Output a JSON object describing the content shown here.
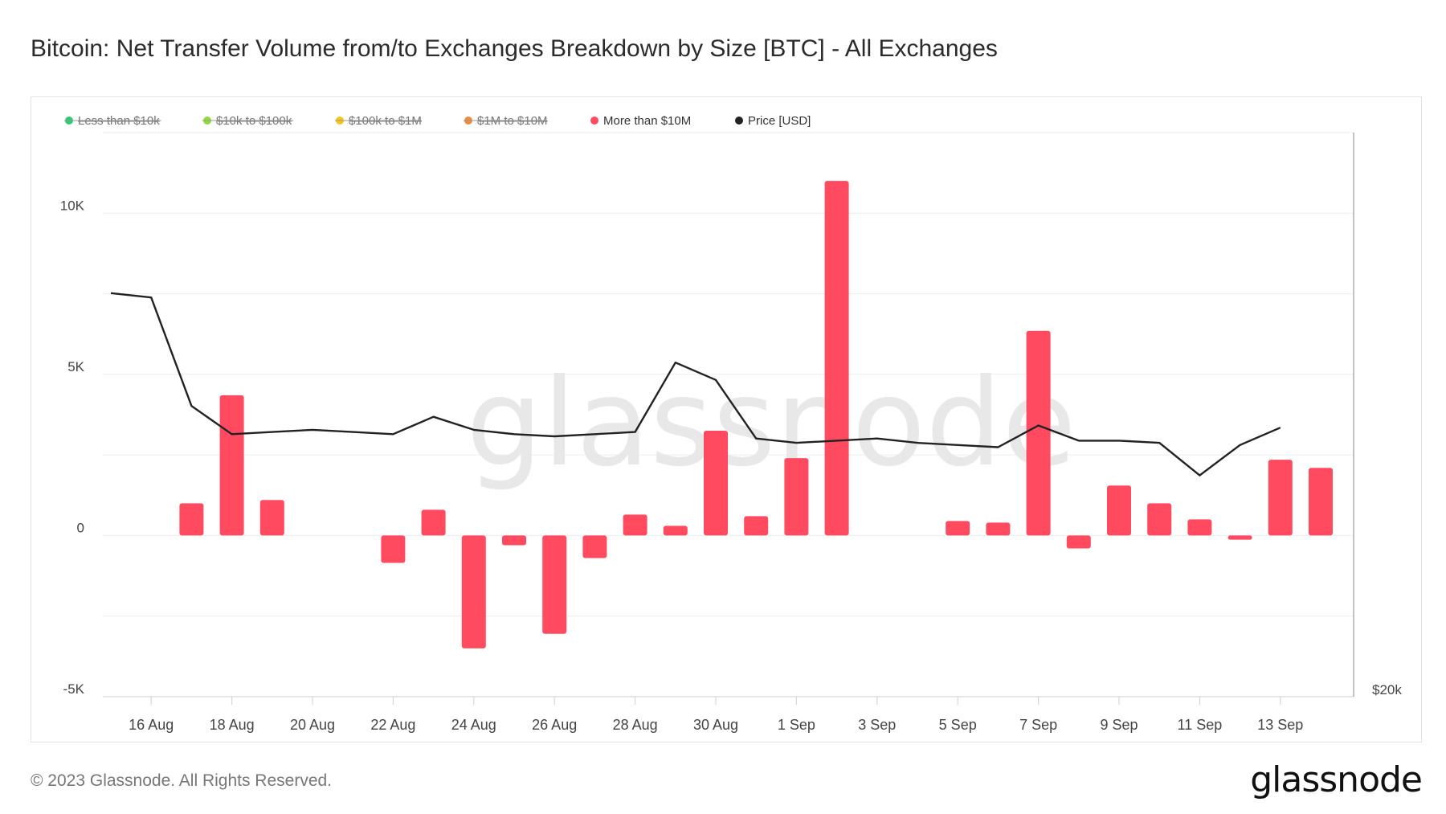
{
  "title": "Bitcoin: Net Transfer Volume from/to Exchanges Breakdown by Size [BTC] - All Exchanges",
  "footer": "© 2023 Glassnode. All Rights Reserved.",
  "brand": "glassnode",
  "watermark": "glassnode",
  "colors": {
    "bar": "#ff4a60",
    "price_line": "#222222",
    "grid": "#ececec",
    "watermark": "#e8e8e8"
  },
  "chart_data": {
    "type": "bar",
    "legend_position": "top-left",
    "grid": true,
    "legend": [
      {
        "label": "Less than $10k",
        "color": "#2ecc71",
        "disabled": true
      },
      {
        "label": "$10k to $100k",
        "color": "#8fdb3a",
        "disabled": true
      },
      {
        "label": "$100k to $1M",
        "color": "#f5c518",
        "disabled": true
      },
      {
        "label": "$1M to $10M",
        "color": "#f08a3c",
        "disabled": true
      },
      {
        "label": "More than $10M",
        "color": "#ff4a60",
        "disabled": false
      },
      {
        "label": "Price [USD]",
        "color": "#222222",
        "disabled": false
      }
    ],
    "x_tick_labels": [
      "16 Aug",
      "18 Aug",
      "20 Aug",
      "22 Aug",
      "24 Aug",
      "26 Aug",
      "28 Aug",
      "30 Aug",
      "1 Sep",
      "3 Sep",
      "5 Sep",
      "7 Sep",
      "9 Sep",
      "11 Sep",
      "13 Sep"
    ],
    "y_tick_labels": [
      "10K",
      "5K",
      "0",
      "-5K"
    ],
    "y_right_label": "$20k",
    "ylim": [
      -5000,
      12500
    ],
    "categories": [
      "15 Aug",
      "16 Aug",
      "17 Aug",
      "18 Aug",
      "19 Aug",
      "20 Aug",
      "21 Aug",
      "22 Aug",
      "23 Aug",
      "24 Aug",
      "25 Aug",
      "26 Aug",
      "27 Aug",
      "28 Aug",
      "29 Aug",
      "30 Aug",
      "31 Aug",
      "1 Sep",
      "2 Sep",
      "3 Sep",
      "4 Sep",
      "5 Sep",
      "6 Sep",
      "7 Sep",
      "8 Sep",
      "9 Sep",
      "10 Sep",
      "11 Sep",
      "12 Sep",
      "13 Sep"
    ],
    "series": [
      {
        "name": "More than $10M",
        "values": [
          null,
          1000,
          4350,
          1100,
          null,
          null,
          -850,
          800,
          -3500,
          -300,
          -3050,
          -700,
          650,
          300,
          3250,
          600,
          2400,
          11000,
          null,
          null,
          450,
          400,
          6350,
          -400,
          1550,
          1000,
          500,
          -130,
          2350,
          2100
        ]
      },
      {
        "name": "Price [USD]",
        "values": [
          29300,
          29200,
          26700,
          26050,
          26100,
          26150,
          26100,
          26050,
          26450,
          26150,
          26050,
          26000,
          26050,
          26100,
          27700,
          27300,
          25950,
          25850,
          25900,
          25950,
          25850,
          25800,
          25750,
          26250,
          25900,
          25900,
          25850,
          25100,
          25800,
          26200
        ]
      }
    ]
  }
}
